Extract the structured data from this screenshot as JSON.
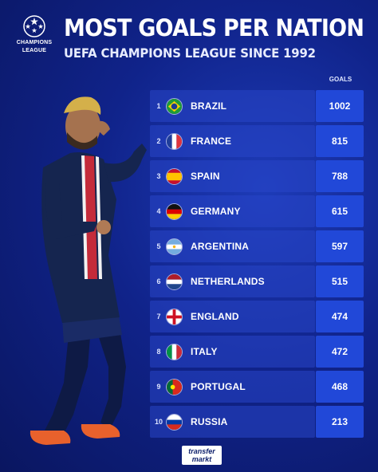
{
  "logo": {
    "line1": "CHAMPIONS",
    "line2": "LEAGUE"
  },
  "title": "MOST GOALS PER NATION",
  "subtitle": "UEFA CHAMPIONS LEAGUE SINCE 1992",
  "goals_header": "GOALS",
  "rows": [
    {
      "rank": "1",
      "country": "BRAZIL",
      "goals": "1002",
      "flag": "brazil-flag-icon"
    },
    {
      "rank": "2",
      "country": "FRANCE",
      "goals": "815",
      "flag": "france-flag-icon"
    },
    {
      "rank": "3",
      "country": "SPAIN",
      "goals": "788",
      "flag": "spain-flag-icon"
    },
    {
      "rank": "4",
      "country": "GERMANY",
      "goals": "615",
      "flag": "germany-flag-icon"
    },
    {
      "rank": "5",
      "country": "ARGENTINA",
      "goals": "597",
      "flag": "argentina-flag-icon"
    },
    {
      "rank": "6",
      "country": "NETHERLANDS",
      "goals": "515",
      "flag": "netherlands-flag-icon"
    },
    {
      "rank": "7",
      "country": "ENGLAND",
      "goals": "474",
      "flag": "england-flag-icon"
    },
    {
      "rank": "8",
      "country": "ITALY",
      "goals": "472",
      "flag": "italy-flag-icon"
    },
    {
      "rank": "9",
      "country": "PORTUGAL",
      "goals": "468",
      "flag": "portugal-flag-icon"
    },
    {
      "rank": "10",
      "country": "RUSSIA",
      "goals": "213",
      "flag": "russia-flag-icon"
    }
  ],
  "footer_logo": {
    "line1": "transfer",
    "line2": "markt"
  },
  "colors": {
    "background": "#10238a",
    "row": "#2c4bc8",
    "goal_box": "#2148d8"
  }
}
